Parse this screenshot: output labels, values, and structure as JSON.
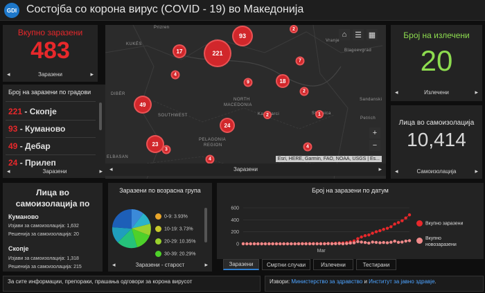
{
  "header": {
    "logo_text": "GDI",
    "title": "Состојба со корона вирус (COVID - 19) во Македонија"
  },
  "total_infected": {
    "title": "Вкупно заразени",
    "value": "483",
    "nav_label": "Заразени"
  },
  "recovered": {
    "title": "Број на излечени",
    "value": "20",
    "nav_label": "Излечени"
  },
  "self_isolation_count": {
    "title": "Лица во самоизолација",
    "value": "10,414",
    "nav_label": "Самоизолација"
  },
  "cities": {
    "title": "Број на заразени по градови",
    "nav_label": "Заразени",
    "items": [
      {
        "count": "221",
        "name": " - Скопје"
      },
      {
        "count": "93",
        "name": " - Куманово"
      },
      {
        "count": "49",
        "name": " - Дебар"
      },
      {
        "count": "24",
        "name": " - Прилеп"
      }
    ]
  },
  "map": {
    "nav_label": "Заразени",
    "attribution": "Esri, HERE, Garmin, FAO, NOAA, USGS | Es...",
    "labels": [
      "Prizren",
      "KUKËS",
      "Vranje",
      "Blagoevgrad",
      "NORTH",
      "MACEDONIA",
      "DIBËR",
      "SOUTHWEST",
      "Kavadarci",
      "Strumica",
      "Sandanski",
      "Petrich",
      "PELAGONIA",
      "REGION",
      "ELBASAN"
    ],
    "bubbles": [
      "93",
      "2",
      "17",
      "221",
      "7",
      "4",
      "18",
      "9",
      "49",
      "2",
      "2",
      "1",
      "24",
      "23",
      "3",
      "4",
      "4"
    ],
    "zoom_in": "+",
    "zoom_out": "−"
  },
  "isolation_detail": {
    "title": "Лица во самоизолација по",
    "groups": [
      {
        "city": "Куманово",
        "lines": [
          "Изјави за самоизолација: 1,632",
          "Решенија за самоизолација: 20"
        ]
      },
      {
        "city": "Скопје",
        "lines": [
          "Изјави за самоизолација: 1,318",
          "Решенија за самоизолација: 215"
        ]
      }
    ]
  },
  "age_group": {
    "title": "Заразени по возрасна група",
    "nav_label": "Заразени - старост",
    "legend": [
      {
        "label": "0-9:  3.93%",
        "color": "#e8a52a"
      },
      {
        "label": "10-19:  3.73%",
        "color": "#c9c92a"
      },
      {
        "label": "20-29:  10.35%",
        "color": "#9ad22d"
      },
      {
        "label": "30-39:  20.29%",
        "color": "#4ed12a"
      }
    ]
  },
  "chart_tabs": [
    "Заразени",
    "Смртни случаи",
    "Излечени",
    "Тестирани"
  ],
  "footer": {
    "left": "За сите информации, препораки, прашања одговори за корона вирусот",
    "right_prefix": "Извори: ",
    "right_link1": "Министерство за здравство",
    "right_mid": " и ",
    "right_link2": "Институт за јавно здравје",
    "right_suffix": "."
  },
  "colors": {
    "accent_red": "#e8282b",
    "accent_green": "#8ddc4f",
    "bubble": "#d1272b"
  },
  "chart_data": {
    "type": "scatter",
    "title": "Број на заразени по датум",
    "xlabel": "",
    "ylabel": "",
    "x_tick_labels": [
      "Mar"
    ],
    "ylim": [
      0,
      600
    ],
    "y_ticks": [
      0,
      200,
      400,
      600
    ],
    "legend_position": "right",
    "series": [
      {
        "name": "Вкупно заразени",
        "color": "#e8282b",
        "values": [
          1,
          1,
          1,
          1,
          1,
          1,
          1,
          1,
          1,
          1,
          1,
          1,
          1,
          1,
          1,
          2,
          3,
          3,
          3,
          3,
          3,
          3,
          3,
          7,
          7,
          9,
          14,
          14,
          19,
          31,
          48,
          85,
          114,
          136,
          148,
          177,
          201,
          219,
          241,
          259,
          285,
          329,
          354,
          384,
          430,
          483
        ]
      },
      {
        "name": "Вкупно новозаразени",
        "color": "#f08a8a",
        "values": [
          1,
          0,
          0,
          0,
          0,
          0,
          0,
          0,
          0,
          0,
          0,
          0,
          0,
          0,
          0,
          1,
          1,
          0,
          0,
          0,
          0,
          0,
          0,
          4,
          0,
          2,
          5,
          0,
          5,
          12,
          17,
          37,
          29,
          22,
          12,
          29,
          24,
          18,
          22,
          18,
          26,
          44,
          25,
          30,
          46,
          53
        ]
      }
    ]
  }
}
